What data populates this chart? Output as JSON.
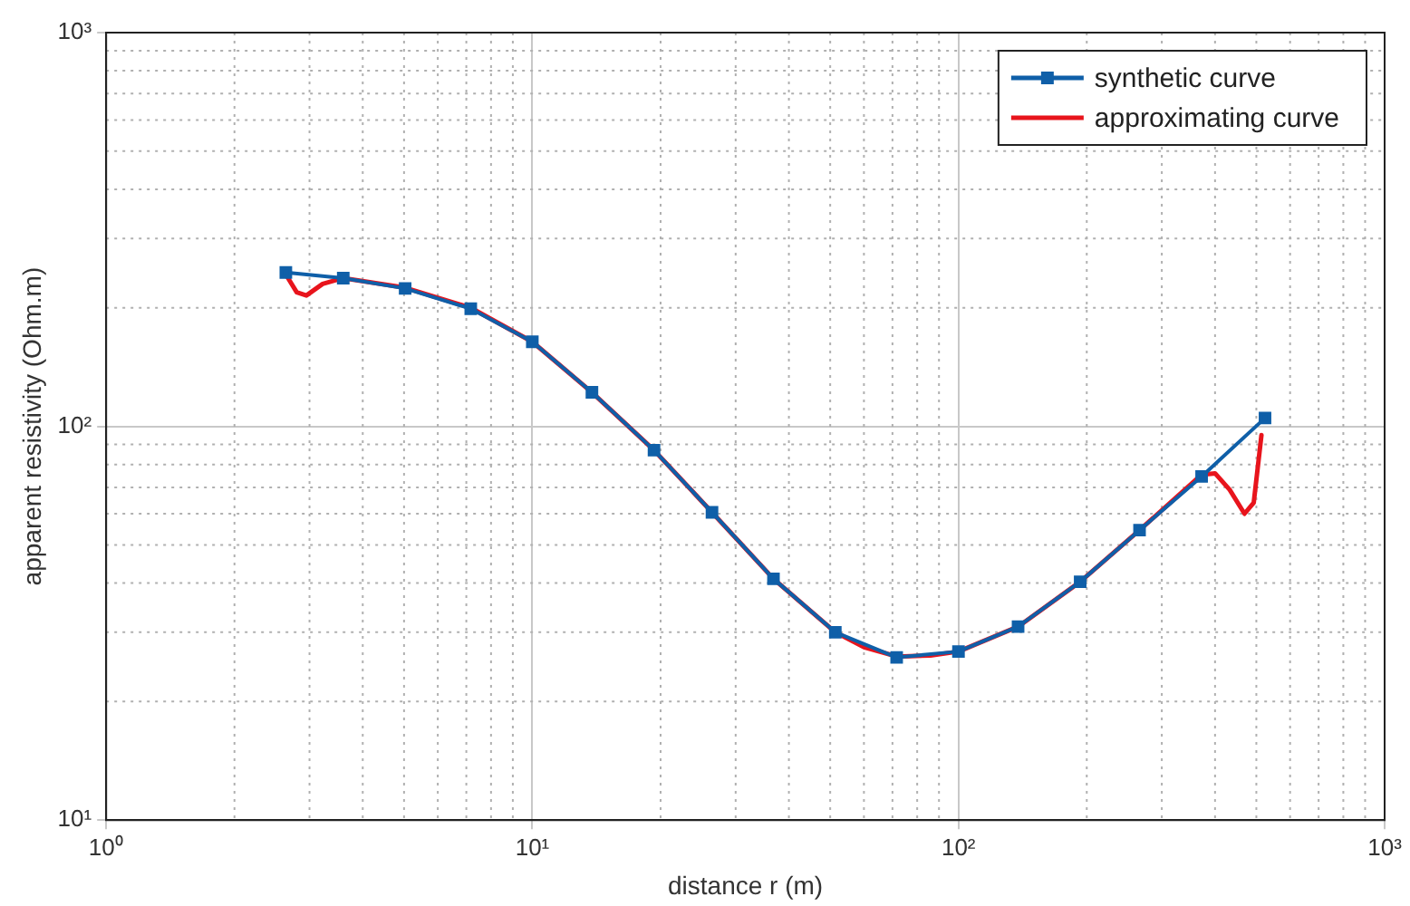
{
  "chart_data": {
    "type": "line",
    "xlabel": "distance r (m)",
    "ylabel": "apparent resistivity (Ohm.m)",
    "log": "xy",
    "grid": true,
    "legend": "top right",
    "line_style": "solid",
    "xlim": [
      1,
      1000
    ],
    "xticks": [
      {
        "value": 1,
        "label": "10⁰"
      },
      {
        "value": 10,
        "label": "10¹"
      },
      {
        "value": 100,
        "label": "10²"
      },
      {
        "value": 1000,
        "label": "10³"
      }
    ],
    "ylim": [
      10,
      1000
    ],
    "yticks": [
      {
        "value": 10,
        "label": "10¹"
      },
      {
        "value": 100,
        "label": "10²"
      },
      {
        "value": 1000,
        "label": "10³"
      }
    ],
    "series": [
      {
        "name": "synthetic curve",
        "color": "#0f5fa8",
        "marker": "square",
        "x": [
          2.64,
          3.6,
          5.03,
          7.17,
          10,
          13.8,
          19.3,
          26.4,
          36.8,
          51.4,
          71.6,
          100,
          138,
          193,
          266,
          372,
          524
        ],
        "values": [
          246,
          238,
          224,
          199,
          164,
          122,
          87,
          60.5,
          41,
          30,
          25.9,
          26.8,
          31,
          40.3,
          54.5,
          74.6,
          105
        ]
      },
      {
        "name": "approximating curve",
        "color": "#e8141c",
        "marker": "none",
        "x": [
          2.64,
          2.8,
          2.95,
          3.22,
          3.6,
          5.03,
          7.17,
          10,
          13.8,
          19.3,
          26.4,
          36.8,
          51.4,
          60,
          72,
          86,
          100,
          138,
          193,
          266,
          372,
          400,
          433,
          469,
          493,
          514
        ],
        "values": [
          243,
          219,
          215,
          230,
          238,
          225,
          200,
          164,
          122,
          87,
          60.5,
          41,
          30,
          27.5,
          26,
          26.2,
          26.8,
          31,
          40.3,
          54.5,
          75.4,
          76,
          69,
          60,
          64,
          95
        ]
      }
    ]
  }
}
